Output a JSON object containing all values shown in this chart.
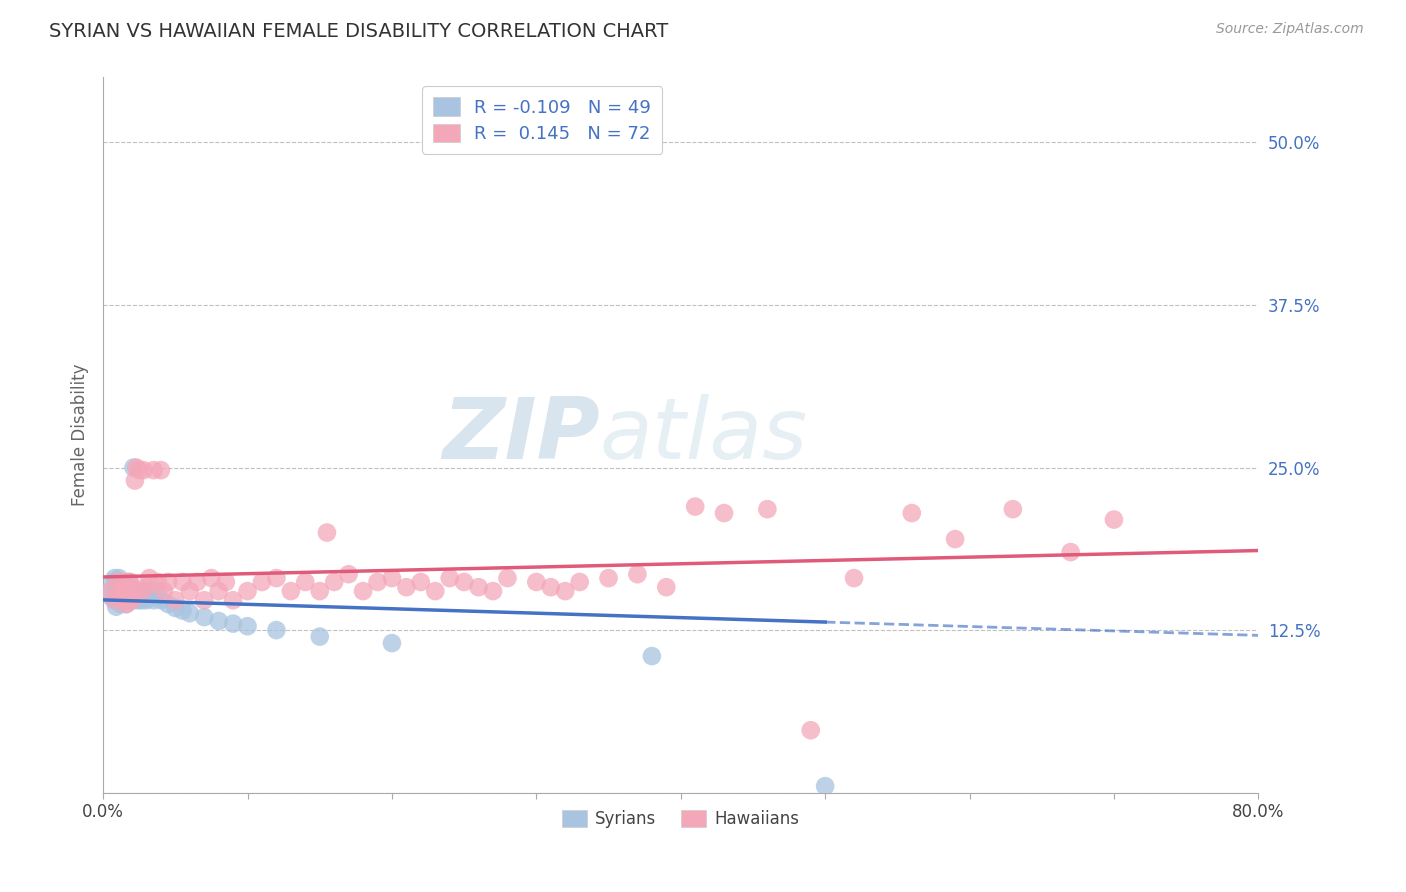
{
  "title": "SYRIAN VS HAWAIIAN FEMALE DISABILITY CORRELATION CHART",
  "source": "Source: ZipAtlas.com",
  "ylabel": "Female Disability",
  "xlim": [
    0.0,
    0.8
  ],
  "ylim": [
    0.0,
    0.55
  ],
  "yticks": [
    0.0,
    0.125,
    0.25,
    0.375,
    0.5
  ],
  "ytick_labels": [
    "",
    "12.5%",
    "25.0%",
    "37.5%",
    "50.0%"
  ],
  "background_color": "#ffffff",
  "syrian_color": "#a8c4e0",
  "hawaiian_color": "#f4a7b9",
  "syrian_line_color": "#4472c4",
  "hawaiian_line_color": "#e05a7a",
  "syrian_R": -0.109,
  "syrian_N": 49,
  "hawaiian_R": 0.145,
  "hawaiian_N": 72,
  "watermark_ZIP": "ZIP",
  "watermark_atlas": "atlas",
  "syrian_x": [
    0.005,
    0.006,
    0.007,
    0.008,
    0.008,
    0.009,
    0.009,
    0.01,
    0.01,
    0.011,
    0.011,
    0.012,
    0.012,
    0.013,
    0.013,
    0.014,
    0.015,
    0.015,
    0.016,
    0.017,
    0.018,
    0.018,
    0.019,
    0.02,
    0.021,
    0.022,
    0.023,
    0.025,
    0.026,
    0.027,
    0.028,
    0.03,
    0.032,
    0.035,
    0.038,
    0.04,
    0.045,
    0.05,
    0.055,
    0.06,
    0.07,
    0.08,
    0.09,
    0.1,
    0.12,
    0.15,
    0.2,
    0.38,
    0.5
  ],
  "syrian_y": [
    0.155,
    0.15,
    0.162,
    0.148,
    0.165,
    0.143,
    0.158,
    0.152,
    0.162,
    0.148,
    0.165,
    0.145,
    0.158,
    0.152,
    0.162,
    0.148,
    0.16,
    0.155,
    0.145,
    0.158,
    0.148,
    0.162,
    0.148,
    0.155,
    0.25,
    0.148,
    0.155,
    0.148,
    0.155,
    0.148,
    0.155,
    0.148,
    0.155,
    0.148,
    0.155,
    0.148,
    0.145,
    0.142,
    0.14,
    0.138,
    0.135,
    0.132,
    0.13,
    0.128,
    0.125,
    0.12,
    0.115,
    0.105,
    0.005
  ],
  "hawaiian_x": [
    0.005,
    0.008,
    0.01,
    0.012,
    0.013,
    0.014,
    0.015,
    0.016,
    0.017,
    0.018,
    0.018,
    0.019,
    0.02,
    0.021,
    0.022,
    0.023,
    0.025,
    0.027,
    0.028,
    0.03,
    0.032,
    0.035,
    0.038,
    0.04,
    0.042,
    0.045,
    0.05,
    0.055,
    0.06,
    0.065,
    0.07,
    0.075,
    0.08,
    0.085,
    0.09,
    0.1,
    0.11,
    0.12,
    0.13,
    0.14,
    0.15,
    0.155,
    0.16,
    0.17,
    0.18,
    0.19,
    0.2,
    0.21,
    0.22,
    0.23,
    0.24,
    0.25,
    0.26,
    0.27,
    0.28,
    0.3,
    0.31,
    0.32,
    0.33,
    0.35,
    0.37,
    0.39,
    0.41,
    0.43,
    0.46,
    0.49,
    0.52,
    0.56,
    0.59,
    0.63,
    0.67,
    0.7
  ],
  "hawaiian_y": [
    0.155,
    0.148,
    0.162,
    0.155,
    0.148,
    0.162,
    0.155,
    0.145,
    0.162,
    0.148,
    0.155,
    0.162,
    0.148,
    0.155,
    0.24,
    0.25,
    0.248,
    0.155,
    0.248,
    0.158,
    0.165,
    0.248,
    0.162,
    0.248,
    0.155,
    0.162,
    0.148,
    0.162,
    0.155,
    0.162,
    0.148,
    0.165,
    0.155,
    0.162,
    0.148,
    0.155,
    0.162,
    0.165,
    0.155,
    0.162,
    0.155,
    0.2,
    0.162,
    0.168,
    0.155,
    0.162,
    0.165,
    0.158,
    0.162,
    0.155,
    0.165,
    0.162,
    0.158,
    0.155,
    0.165,
    0.162,
    0.158,
    0.155,
    0.162,
    0.165,
    0.168,
    0.158,
    0.22,
    0.215,
    0.218,
    0.048,
    0.165,
    0.215,
    0.195,
    0.218,
    0.185,
    0.21
  ]
}
